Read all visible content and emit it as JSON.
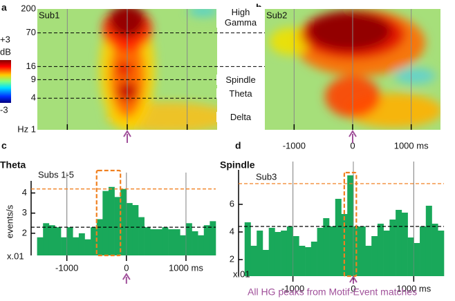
{
  "chart_data": [
    {
      "panel_label": "a",
      "type": "heatmap",
      "subject": "Sub1",
      "xlim": [
        -1500,
        1500
      ],
      "xticks": [
        -1000,
        0,
        1000
      ],
      "show_xtick_labels": false,
      "ylim": [
        1,
        200
      ],
      "log_y": true,
      "yticks": [
        200,
        70,
        16,
        9,
        4,
        {
          "value": 1,
          "label": "Hz 1"
        }
      ],
      "band_labels": [
        "High Gamma",
        "Spindle",
        "Theta",
        "Delta"
      ],
      "colorbar": {
        "label": "dB",
        "ticks": [
          {
            "value": 3,
            "label": "+3"
          },
          -3
        ]
      }
    },
    {
      "panel_label": "b",
      "type": "heatmap",
      "subject": "Sub2",
      "xlim": [
        -1500,
        1500
      ],
      "xticks": [
        -1000,
        0,
        {
          "value": 1000,
          "label": "1000 ms"
        }
      ],
      "show_xtick_labels": true,
      "ylim": [
        1,
        200
      ],
      "log_y": true
    },
    {
      "panel_label": "c",
      "type": "histogram",
      "title": "Theta",
      "subtitle": "Subs 1-5",
      "y_label": "events/s",
      "y_unit": "x.01",
      "color": "#19a85a",
      "bins": [
        -1500,
        -1400,
        -1300,
        -1200,
        -1100,
        -1000,
        -900,
        -800,
        -700,
        -600,
        -500,
        -400,
        -300,
        -200,
        -100,
        0,
        100,
        200,
        300,
        400,
        500,
        600,
        700,
        800,
        900,
        1000,
        1100,
        1200,
        1300,
        1400,
        1500
      ],
      "values": [
        1.8,
        2.5,
        2.4,
        2.3,
        1.8,
        2.3,
        1.8,
        2.0,
        1.7,
        2.3,
        2.7,
        4.1,
        4.3,
        3.8,
        4.2,
        3.5,
        3.4,
        2.8,
        2.3,
        2.2,
        2.2,
        2.3,
        2.2,
        2.2,
        1.9,
        2.5,
        2.1,
        1.9,
        2.4,
        2.6
      ],
      "xlim": [
        -1600,
        1500
      ],
      "xticks": [
        -1000,
        0,
        {
          "value": 1000,
          "label": "1000 ms"
        }
      ],
      "ylim": [
        0.9,
        4.6
      ],
      "yticks": [
        2,
        3,
        4
      ],
      "reference_lines": [
        {
          "value": 4.2,
          "color": "#f08020"
        },
        {
          "value": 2.3,
          "color": "#000000"
        }
      ],
      "highlight_window": [
        -500,
        -100
      ],
      "highlight_color": "#f08020"
    },
    {
      "panel_label": "d",
      "type": "histogram",
      "title": "Spindle",
      "subtitle": "Sub3",
      "y_unit": "x.01",
      "color": "#19a85a",
      "bins": [
        -1800,
        -1700,
        -1600,
        -1500,
        -1400,
        -1300,
        -1200,
        -1100,
        -1000,
        -900,
        -800,
        -700,
        -600,
        -500,
        -400,
        -300,
        -200,
        -100,
        0,
        100,
        200,
        300,
        400,
        500,
        600,
        700,
        800,
        900,
        1000,
        1100,
        1200,
        1300,
        1400,
        1500
      ],
      "values": [
        4.7,
        3.0,
        4.1,
        2.7,
        4.3,
        4.0,
        4.1,
        4.4,
        3.7,
        3.0,
        2.9,
        3.3,
        4.3,
        5.0,
        4.4,
        6.4,
        5.3,
        8.1,
        4.4,
        4.4,
        3.0,
        3.7,
        4.6,
        4.1,
        4.9,
        5.6,
        5.4,
        3.6,
        3.2,
        4.4,
        5.9,
        4.6,
        4.1
      ],
      "xlim": [
        -1900,
        1500
      ],
      "xticks": [
        -1000,
        0,
        {
          "value": 1000,
          "label": "1000 ms"
        }
      ],
      "ylim": [
        0.8,
        8.5
      ],
      "yticks": [
        2,
        4,
        6
      ],
      "reference_lines": [
        {
          "value": 7.5,
          "color": "#f08020"
        },
        {
          "value": 4.4,
          "color": "#000000"
        }
      ],
      "highlight_window": [
        -150,
        50
      ],
      "highlight_color": "#f08020",
      "annotation": "All HG peaks from Motif-Event matches",
      "annotation_color": "#a0509a"
    }
  ]
}
